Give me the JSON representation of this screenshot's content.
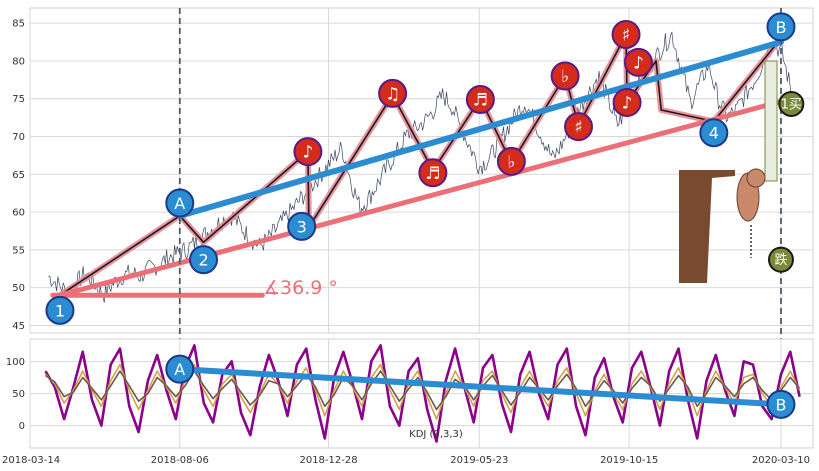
{
  "chart_data": [
    {
      "type": "line",
      "panel": "price",
      "title": "",
      "xlabel": "",
      "ylabel": "",
      "ylim": [
        44,
        87
      ],
      "yticks": [
        45,
        50,
        55,
        60,
        65,
        70,
        75,
        80,
        85
      ],
      "grid": true,
      "series": [
        {
          "values": [
            51.5,
            50.5,
            49.5,
            50.5,
            52.0,
            50.5,
            49.0,
            50.5,
            51.5,
            52.0,
            51.5,
            52.5,
            53.0,
            54.0,
            54.5,
            55.0,
            56.0,
            57.0,
            58.0,
            59.0,
            59.5,
            58.0,
            56.5,
            55.5,
            56.5,
            58.0,
            59.5,
            61.0,
            62.5,
            64.0,
            65.5,
            67.0,
            68.5,
            64.0,
            60.5,
            62.0,
            64.0,
            66.0,
            68.0,
            70.0,
            71.0,
            72.0,
            73.5,
            75.5,
            74.0,
            71.0,
            68.5,
            66.0,
            67.0,
            69.0,
            71.0,
            73.0,
            74.5,
            72.0,
            69.5,
            67.0,
            69.0,
            71.5,
            74.0,
            76.0,
            78.0,
            75.0,
            71.5,
            73.5,
            76.0,
            78.0,
            80.0,
            82.0,
            83.5,
            79.0,
            74.5,
            77.0,
            79.5,
            75.0,
            72.5,
            73.5,
            75.5,
            77.5,
            80.0,
            82.5,
            81.0,
            76.0
          ]
        }
      ],
      "zigzag": {
        "x": [
          "2018-04-12",
          "2018-08-06",
          "2018-08-29",
          "2018-12-08",
          "2018-12-09",
          "2019-02-28",
          "2019-04-08",
          "2019-05-24",
          "2019-06-23",
          "2019-08-14",
          "2019-08-27",
          "2019-10-12",
          "2019-10-13",
          "2019-11-10",
          "2019-11-15",
          "2020-01-05",
          "2020-03-10"
        ],
        "y": [
          49,
          59.5,
          56,
          68,
          58,
          75.5,
          65.5,
          75,
          66.5,
          78,
          71.5,
          83.5,
          74.5,
          80,
          73.5,
          72,
          83
        ]
      },
      "trendlines": [
        {
          "name": "upper",
          "color": "#2b8cd1",
          "from": [
            "2018-08-06",
            59.5
          ],
          "to": [
            "2020-03-10",
            82.5
          ]
        },
        {
          "name": "lower",
          "color": "#ec6f78",
          "from": [
            "2018-04-12",
            49
          ],
          "to": [
            "2020-03-20",
            75
          ]
        },
        {
          "name": "angle-base",
          "color": "#ec6f78",
          "from": [
            "2018-04-05",
            49
          ],
          "to": [
            "2018-10-25",
            49
          ]
        }
      ],
      "angle_label": "∡36.9 °",
      "vlines": [
        "2018-08-06",
        "2020-03-10"
      ],
      "wave_labels": [
        {
          "label": "1",
          "x": "2018-04-12",
          "y": 47.0,
          "color": "#2b8cd1"
        },
        {
          "label": "A",
          "x": "2018-08-06",
          "y": 61.2,
          "color": "#2b8cd1"
        },
        {
          "label": "2",
          "x": "2018-08-29",
          "y": 53.7,
          "color": "#2b8cd1"
        },
        {
          "label": "3",
          "x": "2018-12-02",
          "y": 58.1,
          "color": "#2b8cd1"
        },
        {
          "label": "4",
          "x": "2020-01-05",
          "y": 70.5,
          "color": "#2b8cd1"
        },
        {
          "label": "B",
          "x": "2020-03-10",
          "y": 84.5,
          "color": "#2b8cd1"
        },
        {
          "label": "♪",
          "x": "2018-12-08",
          "y": 68.0,
          "color": "#d42b1a"
        },
        {
          "label": "♫",
          "x": "2019-02-28",
          "y": 75.7,
          "color": "#d42b1a"
        },
        {
          "label": "♬",
          "x": "2019-04-08",
          "y": 65.2,
          "color": "#d42b1a"
        },
        {
          "label": "♬",
          "x": "2019-05-24",
          "y": 74.9,
          "color": "#d42b1a"
        },
        {
          "label": "♭",
          "x": "2019-06-23",
          "y": 66.7,
          "color": "#d42b1a"
        },
        {
          "label": "♭",
          "x": "2019-08-14",
          "y": 78.0,
          "color": "#d42b1a"
        },
        {
          "label": "♯",
          "x": "2019-08-27",
          "y": 71.3,
          "color": "#d42b1a"
        },
        {
          "label": "♯",
          "x": "2019-10-12",
          "y": 83.5,
          "color": "#d42b1a"
        },
        {
          "label": "♪",
          "x": "2019-10-13",
          "y": 74.5,
          "color": "#d42b1a"
        },
        {
          "label": "♪",
          "x": "2019-10-24",
          "y": 79.8,
          "color": "#d42b1a"
        },
        {
          "label": "1买",
          "x": "2020-03-20",
          "y": 74.3,
          "color": "#7a8a3a"
        },
        {
          "label": "跌",
          "x": "2020-03-10",
          "y": 53.7,
          "color": "#7a8a3a"
        }
      ]
    },
    {
      "type": "line",
      "panel": "indicator",
      "title": "",
      "annotation": "KDJ (9,3,3)",
      "ylim": [
        -35,
        135
      ],
      "yticks": [
        0,
        50,
        100
      ],
      "grid": true,
      "series": [
        {
          "color": "#8b008b",
          "values": [
            85,
            60,
            10,
            60,
            115,
            40,
            0,
            95,
            120,
            30,
            -10,
            70,
            110,
            55,
            10,
            90,
            125,
            35,
            5,
            80,
            100,
            20,
            -15,
            60,
            110,
            70,
            15,
            95,
            120,
            40,
            -20,
            75,
            115,
            65,
            10,
            100,
            125,
            30,
            0,
            85,
            105,
            25,
            -25,
            70,
            120,
            60,
            5,
            90,
            110,
            35,
            -10,
            80,
            115,
            50,
            10,
            95,
            120,
            30,
            -15,
            75,
            105,
            45,
            5,
            90,
            115,
            60,
            0,
            85,
            120,
            40,
            -20,
            70,
            110,
            55,
            15,
            100,
            95,
            30,
            10,
            80,
            115,
            45
          ]
        },
        {
          "color": "#d6a04a",
          "values": [
            80,
            65,
            35,
            55,
            85,
            55,
            30,
            70,
            95,
            55,
            25,
            55,
            85,
            60,
            35,
            70,
            95,
            55,
            30,
            65,
            80,
            45,
            20,
            50,
            80,
            65,
            35,
            70,
            90,
            55,
            15,
            55,
            85,
            60,
            30,
            75,
            95,
            55,
            25,
            65,
            85,
            45,
            10,
            50,
            85,
            60,
            30,
            70,
            85,
            50,
            20,
            60,
            85,
            55,
            30,
            70,
            90,
            50,
            15,
            55,
            80,
            50,
            25,
            65,
            85,
            60,
            25,
            65,
            90,
            55,
            15,
            55,
            85,
            60,
            35,
            75,
            80,
            50,
            30,
            60,
            85,
            55
          ]
        },
        {
          "color": "#6a5a4a",
          "values": [
            78,
            68,
            45,
            52,
            75,
            58,
            40,
            62,
            85,
            62,
            38,
            50,
            75,
            62,
            45,
            62,
            85,
            62,
            42,
            58,
            72,
            52,
            32,
            47,
            70,
            65,
            45,
            62,
            80,
            60,
            30,
            48,
            75,
            62,
            40,
            65,
            85,
            62,
            38,
            57,
            75,
            52,
            25,
            45,
            72,
            62,
            40,
            62,
            78,
            55,
            32,
            52,
            75,
            58,
            40,
            62,
            80,
            58,
            30,
            50,
            70,
            55,
            35,
            58,
            75,
            62,
            38,
            58,
            78,
            60,
            30,
            50,
            75,
            62,
            45,
            65,
            75,
            55,
            40,
            55,
            75,
            58
          ]
        }
      ],
      "trendline": {
        "color": "#2b8cd1",
        "from": [
          "2018-08-06",
          88
        ],
        "to": [
          "2020-03-10",
          33
        ]
      },
      "wave_labels": [
        {
          "label": "A",
          "x": "2018-08-06",
          "y": 88,
          "color": "#2b8cd1"
        },
        {
          "label": "B",
          "x": "2020-03-10",
          "y": 33,
          "color": "#2b8cd1"
        }
      ]
    }
  ],
  "x_axis": {
    "start": "2018-03-14",
    "end": "2020-04-10",
    "tick_labels": [
      "2018-03-14",
      "2018-08-06",
      "2018-12-28",
      "2019-05-23",
      "2019-10-15",
      "2020-03-10"
    ]
  },
  "sticker_texts": [
    "1买",
    "跌"
  ]
}
